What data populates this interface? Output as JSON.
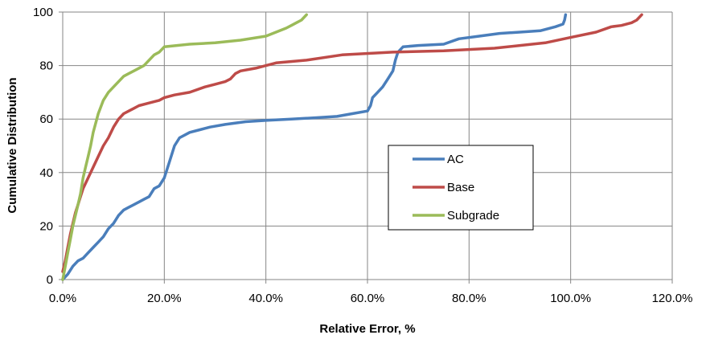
{
  "chart_data": {
    "type": "line",
    "title": "",
    "xlabel": "Relative Error, %",
    "ylabel": "Cumulative Distribution",
    "xlim": [
      0,
      120
    ],
    "ylim": [
      0,
      100
    ],
    "x_ticks": [
      0,
      20,
      40,
      60,
      80,
      100,
      120
    ],
    "x_tick_labels": [
      "0.0%",
      "20.0%",
      "40.0%",
      "60.0%",
      "80.0%",
      "100.0%",
      "120.0%"
    ],
    "y_ticks": [
      0,
      20,
      40,
      60,
      80,
      100
    ],
    "y_tick_labels": [
      "0",
      "20",
      "40",
      "60",
      "80",
      "100"
    ],
    "grid": true,
    "legend_position": "right-center",
    "series": [
      {
        "name": "AC",
        "color": "#4A7EBB",
        "x": [
          0,
          1,
          2,
          3,
          4,
          5,
          6,
          7,
          8,
          9,
          10,
          11,
          12,
          13,
          14,
          15,
          16,
          17,
          18,
          19,
          20,
          21,
          22,
          23,
          24,
          25,
          27,
          29,
          32,
          36,
          40,
          45,
          50,
          54,
          57,
          60,
          60.6,
          61,
          62,
          63,
          64,
          65,
          65.5,
          66,
          67,
          70,
          75,
          78,
          82,
          86,
          90,
          94,
          97,
          98.5,
          98.8,
          99
        ],
        "y": [
          0,
          2,
          5,
          7,
          8,
          10,
          12,
          14,
          16,
          19,
          21,
          24,
          26,
          27,
          28,
          29,
          30,
          31,
          34,
          35,
          38,
          44,
          50,
          53,
          54,
          55,
          56,
          57,
          58,
          59,
          59.5,
          60,
          60.5,
          61,
          62,
          63,
          65,
          68,
          70,
          72,
          75,
          78,
          82,
          85,
          87,
          87.5,
          88,
          90,
          91,
          92,
          92.5,
          93,
          94.5,
          95.5,
          97,
          99
        ]
      },
      {
        "name": "Base",
        "color": "#BE4B48",
        "x": [
          0,
          0.5,
          1,
          1.5,
          2,
          2.5,
          3,
          3.5,
          4,
          5,
          6,
          7,
          8,
          9,
          10,
          11,
          12,
          13,
          14,
          15,
          17,
          19,
          20,
          22,
          25,
          28,
          30,
          32,
          33,
          34,
          35,
          38,
          42,
          48,
          55,
          65,
          75,
          85,
          95,
          100,
          105,
          108,
          110,
          112,
          113,
          114
        ],
        "y": [
          3,
          7,
          12,
          17,
          21,
          25,
          28,
          31,
          34,
          38,
          42,
          46,
          50,
          53,
          57,
          60,
          62,
          63,
          64,
          65,
          66,
          67,
          68,
          69,
          70,
          72,
          73,
          74,
          75,
          77,
          78,
          79,
          81,
          82,
          84,
          85,
          85.5,
          86.5,
          88.5,
          90.5,
          92.5,
          94.5,
          95,
          96,
          97,
          99
        ]
      },
      {
        "name": "Subgrade",
        "color": "#9BBB59",
        "x": [
          0,
          0.5,
          1,
          1.5,
          2,
          2.5,
          3,
          3.5,
          4,
          4.5,
          5,
          5.5,
          6,
          7,
          8,
          9,
          10,
          11,
          12,
          13,
          14,
          15,
          16,
          17,
          18,
          19,
          20,
          25,
          30,
          35,
          40,
          42,
          44,
          45,
          46,
          47,
          48
        ],
        "y": [
          0,
          5,
          10,
          15,
          20,
          24,
          28,
          32,
          38,
          42,
          46,
          50,
          55,
          62,
          67,
          70,
          72,
          74,
          76,
          77,
          78,
          79,
          80,
          82,
          84,
          85,
          87,
          88,
          88.5,
          89.5,
          91,
          92.5,
          94,
          95,
          96,
          97,
          99
        ]
      }
    ]
  }
}
